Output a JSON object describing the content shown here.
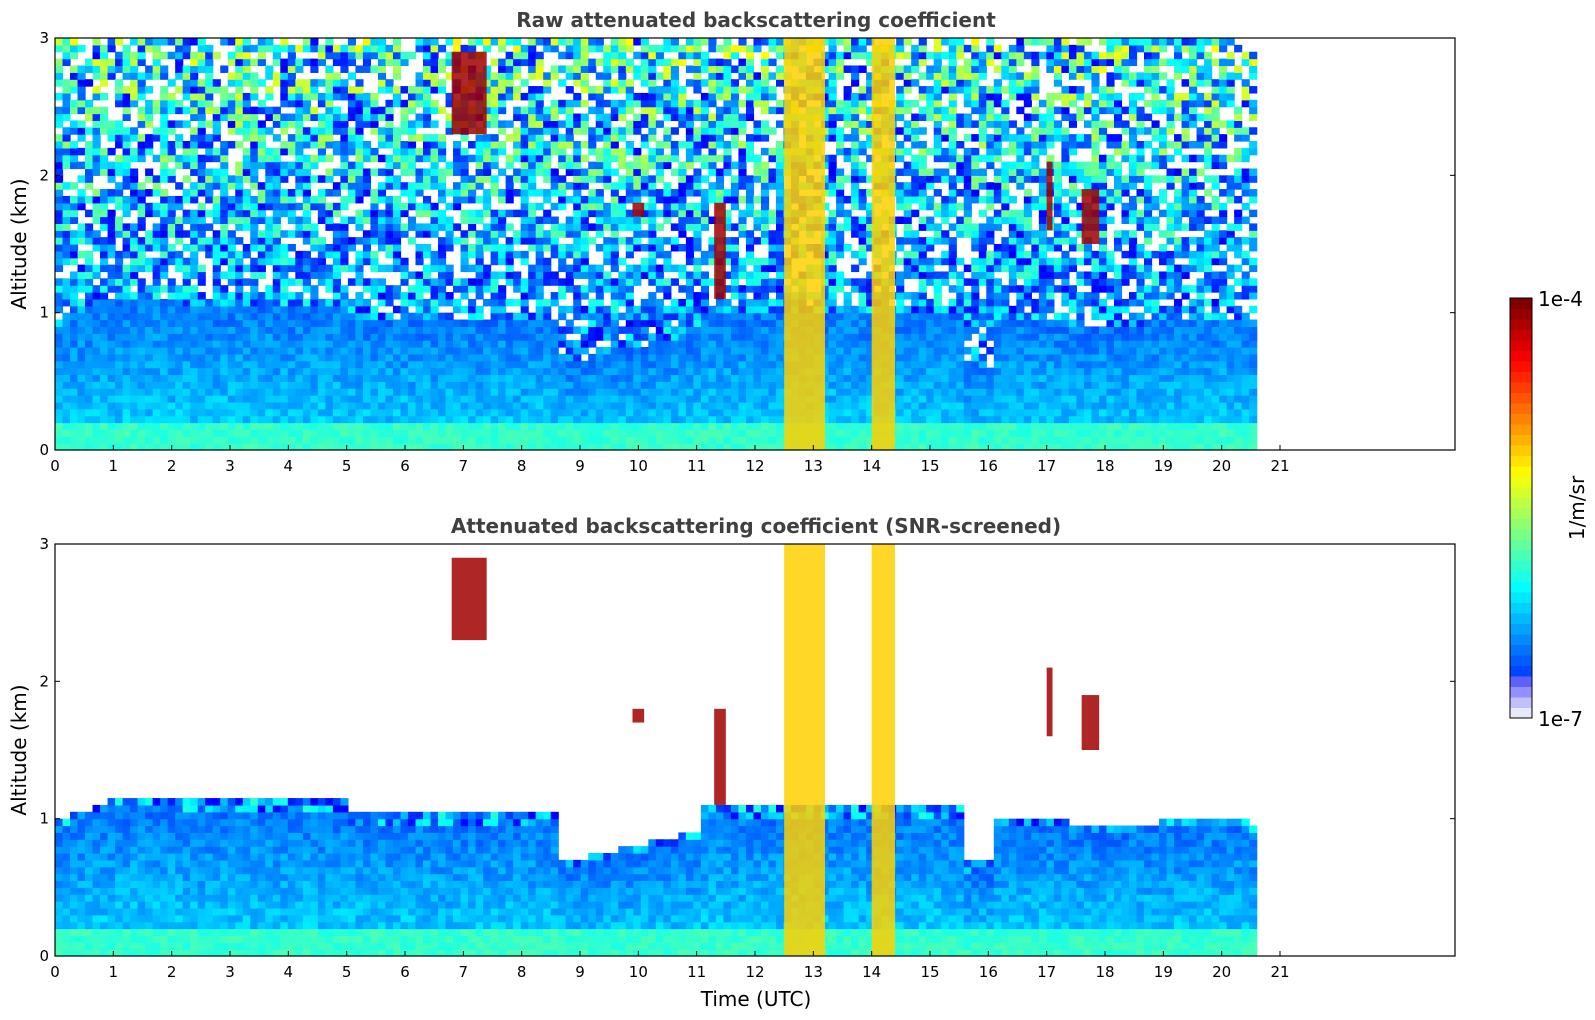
{
  "chart_data": [
    {
      "type": "heatmap",
      "title": "Raw attenuated backscattering coefficient",
      "xlabel": "",
      "ylabel": "Altitude (km)",
      "x_ticks": [
        "0",
        "1",
        "2",
        "3",
        "4",
        "5",
        "6",
        "7",
        "8",
        "9",
        "10",
        "11",
        "12",
        "13",
        "14",
        "15",
        "16",
        "17",
        "18",
        "19",
        "20",
        "21"
      ],
      "y_ticks": [
        "0",
        "1",
        "2",
        "3"
      ],
      "xlim": [
        0,
        24
      ],
      "ylim": [
        0,
        3
      ],
      "data_extent_x": [
        0,
        20.6
      ],
      "screened": false,
      "description_values": {
        "boundary_layer_top_km": [
          0.3,
          1.0
        ],
        "cloud_features": [
          {
            "time_range": [
              6.8,
              7.4
            ],
            "altitude_km": [
              2.3,
              2.9
            ]
          },
          {
            "time_range": [
              9.9,
              10.1
            ],
            "altitude_km": [
              1.7,
              1.8
            ]
          },
          {
            "time_range": [
              11.3,
              11.5
            ],
            "altitude_km": [
              1.1,
              1.8
            ]
          },
          {
            "time_range": [
              12.5,
              13.2
            ],
            "altitude_km": [
              0,
              3
            ]
          },
          {
            "time_range": [
              14.0,
              14.4
            ],
            "altitude_km": [
              0,
              3
            ]
          },
          {
            "time_range": [
              17.0,
              17.1
            ],
            "altitude_km": [
              1.6,
              2.1
            ]
          },
          {
            "time_range": [
              17.6,
              17.9
            ],
            "altitude_km": [
              1.5,
              1.9
            ]
          }
        ]
      }
    },
    {
      "type": "heatmap",
      "title": "Attenuated backscattering coefficient (SNR-screened)",
      "xlabel": "Time (UTC)",
      "ylabel": "Altitude (km)",
      "x_ticks": [
        "0",
        "1",
        "2",
        "3",
        "4",
        "5",
        "6",
        "7",
        "8",
        "9",
        "10",
        "11",
        "12",
        "13",
        "14",
        "15",
        "16",
        "17",
        "18",
        "19",
        "20",
        "21"
      ],
      "y_ticks": [
        "0",
        "1",
        "2",
        "3"
      ],
      "xlim": [
        0,
        24
      ],
      "ylim": [
        0,
        3
      ],
      "data_extent_x": [
        0,
        20.6
      ],
      "screened": true
    }
  ],
  "colorbar": {
    "label": "1/m/sr",
    "max_label": "1e-4",
    "min_label": "1e-7",
    "scale": "log",
    "range": [
      1e-07,
      0.0001
    ],
    "colormap": "jet"
  }
}
